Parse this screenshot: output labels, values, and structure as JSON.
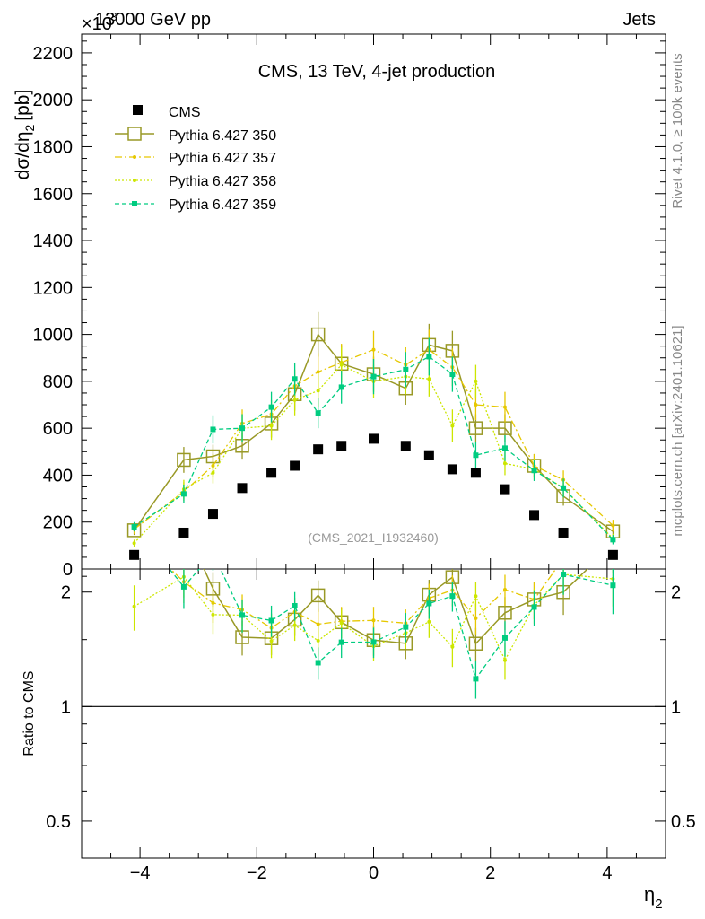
{
  "header": {
    "left_label": "13000 GeV pp",
    "right_label": "Jets",
    "exponent_label": "×10",
    "exponent_power": "-3"
  },
  "side_labels": {
    "rivet": "Rivet 4.1.0, ≥ 100k events",
    "mcplots": "mcplots.cern.ch [arXiv:2401.10621]"
  },
  "colors": {
    "cms": "#000000",
    "p350": "#999926",
    "p357": "#e6c800",
    "p358": "#cce600",
    "p359": "#00cc80"
  },
  "chart_data": [
    {
      "type": "line",
      "panel": "main",
      "title": "CMS, 13 TeV, 4-jet production",
      "watermark": "(CMS_2021_I1932460)",
      "xlabel": "η",
      "xlabel_sub": "2",
      "ylabel": "dσ/dη",
      "ylabel_sub": "2",
      "ylabel_unit": "[pb]",
      "xlim": [
        -5,
        5
      ],
      "ylim": [
        0,
        2280
      ],
      "yticks": [
        0,
        200,
        400,
        600,
        800,
        1000,
        1200,
        1400,
        1600,
        1800,
        2000,
        2200
      ],
      "x": [
        -4.1,
        -3.25,
        -2.75,
        -2.25,
        -1.75,
        -1.35,
        -0.95,
        -0.55,
        0.0,
        0.55,
        0.95,
        1.35,
        1.75,
        2.25,
        2.75,
        3.25,
        4.1
      ],
      "series": [
        {
          "name": "CMS",
          "style": "data",
          "values": [
            60,
            155,
            235,
            345,
            410,
            440,
            510,
            525,
            555,
            525,
            485,
            425,
            410,
            340,
            230,
            155,
            60
          ]
        },
        {
          "name": "Pythia 6.427 350",
          "style": "solid-open-square",
          "values": [
            165,
            465,
            480,
            525,
            620,
            745,
            1000,
            875,
            830,
            770,
            955,
            930,
            600,
            600,
            440,
            310,
            160
          ],
          "errors": [
            20,
            55,
            50,
            55,
            60,
            70,
            95,
            80,
            75,
            70,
            90,
            85,
            60,
            60,
            50,
            40,
            25
          ]
        },
        {
          "name": "Pythia 6.427 357",
          "style": "dashdot-small",
          "values": [
            170,
            330,
            440,
            620,
            660,
            780,
            840,
            880,
            935,
            870,
            935,
            860,
            700,
            690,
            440,
            380,
            185
          ],
          "errors": [
            20,
            40,
            50,
            60,
            60,
            70,
            80,
            80,
            80,
            75,
            85,
            80,
            65,
            65,
            50,
            40,
            25
          ]
        },
        {
          "name": "Pythia 6.427 358",
          "style": "dotted-small",
          "values": [
            110,
            340,
            410,
            600,
            610,
            720,
            760,
            870,
            800,
            820,
            810,
            610,
            800,
            450,
            425,
            345,
            130
          ],
          "errors": [
            15,
            40,
            45,
            60,
            60,
            65,
            70,
            75,
            70,
            75,
            75,
            70,
            70,
            50,
            45,
            40,
            20
          ]
        },
        {
          "name": "Pythia 6.427 359",
          "style": "dashed-square",
          "values": [
            180,
            320,
            595,
            600,
            690,
            810,
            665,
            775,
            820,
            850,
            905,
            830,
            485,
            515,
            420,
            345,
            125
          ],
          "errors": [
            20,
            40,
            60,
            60,
            65,
            70,
            65,
            70,
            75,
            75,
            80,
            75,
            55,
            55,
            45,
            40,
            20
          ]
        }
      ]
    },
    {
      "type": "line",
      "panel": "ratio",
      "ylabel": "Ratio to CMS",
      "ylim": [
        0.4,
        2.3
      ],
      "scale": "log",
      "yticks": [
        0.5,
        1,
        2
      ],
      "ytick_labels": [
        "0.5",
        "1",
        "2"
      ],
      "xticks": [
        -4,
        -2,
        0,
        2,
        4
      ],
      "xtick_labels": [
        "−4",
        "−2",
        "0",
        "2",
        "4"
      ],
      "reference_line": 1
    }
  ]
}
